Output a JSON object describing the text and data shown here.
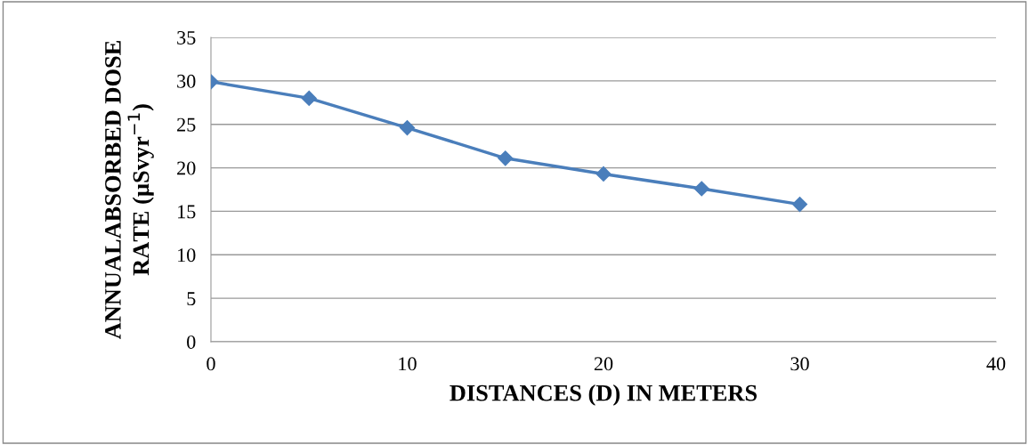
{
  "chart_data": {
    "type": "line",
    "xlabel": "DISTANCES (D) IN METERS",
    "ylabel": "ANNUALABSORBED DOSE\nRATE (µSvyr$^{−1}$)",
    "x": [
      0,
      5,
      10,
      15,
      20,
      25,
      30
    ],
    "series": [
      {
        "color": "#4a7ebb",
        "values": [
          29.9,
          28.0,
          24.6,
          21.1,
          19.3,
          17.6,
          15.8
        ]
      }
    ],
    "xlim": [
      0,
      40
    ],
    "xticks": [
      0,
      10,
      20,
      30,
      40
    ],
    "ylim": [
      0,
      35
    ],
    "yticks": [
      0,
      5,
      10,
      15,
      20,
      25,
      30,
      35
    ],
    "grid": "y",
    "legend": false,
    "marker": "diamond",
    "line_style": "solid"
  }
}
